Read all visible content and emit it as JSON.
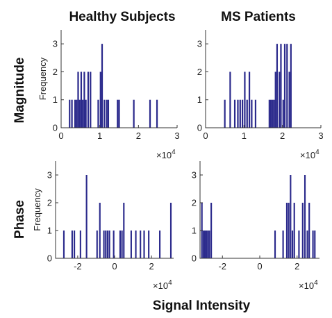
{
  "figure": {
    "column_titles": [
      "Healthy Subjects",
      "MS Patients"
    ],
    "row_titles": [
      "Magnitude",
      "Phase"
    ],
    "xlabel": "Signal Intensity",
    "ylabel": "Frequency",
    "multiplier": "×10",
    "multiplier_exp": "4",
    "bar_color": "#2b2a8c"
  },
  "chart_data": [
    {
      "type": "bar",
      "panel": "healthy-magnitude",
      "ylabel": "Frequency",
      "xlim": [
        0,
        3
      ],
      "ylim": [
        0,
        3.5
      ],
      "xticks": [
        0,
        1,
        2,
        3
      ],
      "yticks": [
        0,
        1,
        2,
        3
      ],
      "bin_width": 0.04,
      "bins": [
        [
          0.22,
          1
        ],
        [
          0.28,
          1
        ],
        [
          0.36,
          1
        ],
        [
          0.4,
          1
        ],
        [
          0.44,
          2
        ],
        [
          0.48,
          1
        ],
        [
          0.52,
          2
        ],
        [
          0.56,
          1
        ],
        [
          0.6,
          2
        ],
        [
          0.64,
          1
        ],
        [
          0.7,
          2
        ],
        [
          0.76,
          2
        ],
        [
          0.96,
          1
        ],
        [
          1.02,
          2
        ],
        [
          1.06,
          3
        ],
        [
          1.12,
          1
        ],
        [
          1.18,
          1
        ],
        [
          1.22,
          1
        ],
        [
          1.46,
          1
        ],
        [
          1.5,
          1
        ],
        [
          1.88,
          1
        ],
        [
          2.3,
          1
        ],
        [
          2.48,
          1
        ]
      ]
    },
    {
      "type": "bar",
      "panel": "ms-magnitude",
      "ylabel": "",
      "xlim": [
        0,
        3
      ],
      "ylim": [
        0,
        3.5
      ],
      "xticks": [
        0,
        1,
        2,
        3
      ],
      "yticks": [
        0,
        1,
        2,
        3
      ],
      "bin_width": 0.04,
      "bins": [
        [
          0.5,
          1
        ],
        [
          0.64,
          2
        ],
        [
          0.76,
          1
        ],
        [
          0.84,
          1
        ],
        [
          0.9,
          1
        ],
        [
          0.96,
          1
        ],
        [
          1.02,
          2
        ],
        [
          1.08,
          1
        ],
        [
          1.14,
          2
        ],
        [
          1.2,
          1
        ],
        [
          1.3,
          1
        ],
        [
          1.66,
          1
        ],
        [
          1.7,
          1
        ],
        [
          1.74,
          1
        ],
        [
          1.78,
          1
        ],
        [
          1.82,
          2
        ],
        [
          1.86,
          3
        ],
        [
          1.92,
          2
        ],
        [
          1.96,
          3
        ],
        [
          2.02,
          1
        ],
        [
          2.06,
          3
        ],
        [
          2.12,
          3
        ],
        [
          2.18,
          2
        ],
        [
          2.22,
          3
        ]
      ]
    },
    {
      "type": "bar",
      "panel": "healthy-phase",
      "ylabel": "Frequency",
      "xlim": [
        -3.2,
        3.2
      ],
      "ylim": [
        0,
        3.5
      ],
      "xticks": [
        -2,
        0,
        2
      ],
      "yticks": [
        0,
        1,
        2,
        3
      ],
      "bin_width": 0.08,
      "bins": [
        [
          -2.75,
          1
        ],
        [
          -2.3,
          1
        ],
        [
          -2.18,
          1
        ],
        [
          -1.85,
          1
        ],
        [
          -1.52,
          3
        ],
        [
          -0.95,
          1
        ],
        [
          -0.8,
          2
        ],
        [
          -0.58,
          1
        ],
        [
          -0.48,
          1
        ],
        [
          -0.38,
          1
        ],
        [
          -0.28,
          1
        ],
        [
          -0.05,
          1
        ],
        [
          0.3,
          1
        ],
        [
          0.4,
          1
        ],
        [
          0.5,
          2
        ],
        [
          0.9,
          1
        ],
        [
          1.15,
          1
        ],
        [
          1.4,
          1
        ],
        [
          1.6,
          1
        ],
        [
          1.85,
          1
        ],
        [
          2.45,
          1
        ],
        [
          3.05,
          2
        ]
      ]
    },
    {
      "type": "bar",
      "panel": "ms-phase",
      "ylabel": "",
      "xlim": [
        -3.2,
        3.2
      ],
      "ylim": [
        0,
        3.5
      ],
      "xticks": [
        -2,
        0,
        2
      ],
      "yticks": [
        0,
        1,
        2,
        3
      ],
      "bin_width": 0.08,
      "bins": [
        [
          -3.1,
          2
        ],
        [
          -3.02,
          1
        ],
        [
          -2.94,
          1
        ],
        [
          -2.86,
          1
        ],
        [
          -2.78,
          1
        ],
        [
          -2.7,
          1
        ],
        [
          -2.6,
          2
        ],
        [
          0.82,
          1
        ],
        [
          1.25,
          1
        ],
        [
          1.45,
          2
        ],
        [
          1.55,
          2
        ],
        [
          1.65,
          3
        ],
        [
          1.75,
          1
        ],
        [
          1.85,
          2
        ],
        [
          2.1,
          1
        ],
        [
          2.3,
          2
        ],
        [
          2.42,
          3
        ],
        [
          2.55,
          1
        ],
        [
          2.65,
          2
        ],
        [
          2.85,
          1
        ],
        [
          2.95,
          1
        ]
      ]
    }
  ]
}
